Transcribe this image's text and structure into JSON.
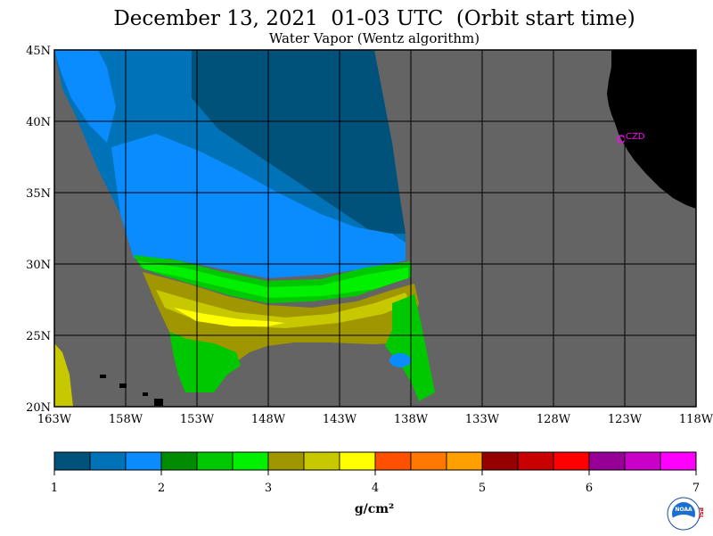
{
  "title": "December 13, 2021  01-03 UTC  (Orbit start time)",
  "subtitle": "Water Vapor (Wentz algorithm)",
  "map": {
    "lat_labels": [
      "45N",
      "40N",
      "35N",
      "30N",
      "25N",
      "20N"
    ],
    "lon_labels": [
      "163W",
      "158W",
      "153W",
      "148W",
      "143W",
      "138W",
      "133W",
      "128W",
      "123W",
      "118W"
    ],
    "lat_range": [
      20,
      45
    ],
    "lon_range": [
      -163,
      -118
    ],
    "station_label": "CZD",
    "colors": {
      "no_data": "#646464",
      "land": "#000000",
      "grid": "#000000",
      "station": "#ff00ff"
    }
  },
  "colorbar": {
    "tick_labels": [
      "1",
      "2",
      "3",
      "4",
      "5",
      "6",
      "7"
    ],
    "unit": "g/cm²",
    "colors": [
      "#00527a",
      "#0072b8",
      "#0a8cff",
      "#008c00",
      "#00c800",
      "#00f000",
      "#a09600",
      "#c8c800",
      "#ffff00",
      "#ff5000",
      "#ff7800",
      "#ffa000",
      "#960000",
      "#c80000",
      "#ff0000",
      "#960096",
      "#c800c8",
      "#ff00ff"
    ]
  },
  "logo": {
    "text": "NOAA",
    "side_text": "PSL"
  }
}
